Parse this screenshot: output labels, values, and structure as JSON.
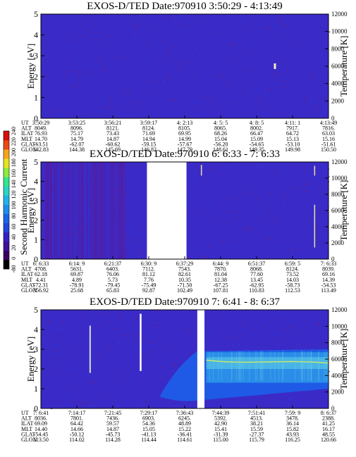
{
  "chart_data": [
    {
      "type": "heatmap",
      "title": "EXOS-D/TED   Date:970910  3:50:29 - 4:13:49",
      "ylabel": "Energy [eV]",
      "y2label": "Temperature [K]",
      "ylim": [
        0,
        5
      ],
      "yticks": [
        "0",
        "1",
        "2",
        "3",
        "4",
        "5"
      ],
      "y2lim": [
        0,
        12000
      ],
      "y2ticks": [
        "0",
        "2000",
        "4000",
        "6000",
        "8000",
        "10000",
        "12000"
      ],
      "gaps": [],
      "bright_spots": [
        {
          "ut_index": 6.5,
          "energy": 2.5
        }
      ],
      "emission_band": null,
      "table": {
        "rows": [
          {
            "label": "UT",
            "values": [
              "3:50:29",
              "3:53:25",
              "3:56:21",
              "3:59:17",
              "4: 2:13",
              "4: 5: 5",
              "4: 8: 5",
              "4:11: 1",
              "4:13:49"
            ]
          },
          {
            "label": "ALT",
            "values": [
              "8049.",
              "8096.",
              "8121.",
              "8124.",
              "8105.",
              "8065.",
              "8002.",
              "7917.",
              "7816."
            ]
          },
          {
            "label": "ILAT",
            "values": [
              "76.93",
              "75.17",
              "73.43",
              "71.69",
              "69.95",
              "68.26",
              "66.47",
              "64.72",
              "63.03"
            ]
          },
          {
            "label": "MLT",
            "values": [
              "14.70",
              "14.79",
              "14.87",
              "14.94",
              "14.99",
              "15.04",
              "15.09",
              "15.13",
              "15.16"
            ]
          },
          {
            "label": "GLAT",
            "values": [
              "-63.51",
              "-62.07",
              "-60.62",
              "-59.15",
              "-57.67",
              "-56.20",
              "-54.65",
              "-53.10",
              "-51.61"
            ]
          },
          {
            "label": "GLON",
            "values": [
              "142.83",
              "144.38",
              "145.69",
              "146.82",
              "147.79",
              "148.61",
              "149.35",
              "149.98",
              "150.50"
            ]
          }
        ]
      }
    },
    {
      "type": "heatmap",
      "title": "EXOS-D/TED   Date:970910  6: 6:33 - 7: 6:33",
      "ylabel": "Energy [eV]",
      "y2label": "Temperature [K]",
      "ylim": [
        0,
        5
      ],
      "yticks": [
        "0",
        "1",
        "2",
        "3",
        "4",
        "5"
      ],
      "y2lim": [
        0,
        12000
      ],
      "y2ticks": [
        "0",
        "2000",
        "4000",
        "6000",
        "8000",
        "10000",
        "12000"
      ],
      "gaps": [
        [
          2.95,
          4.05
        ]
      ],
      "bright_spots": [],
      "emission_band": null,
      "table": {
        "rows": [
          {
            "label": "UT",
            "values": [
              "6: 6:33",
              "6:14: 9",
              "6:21:37",
              "6:30: 9",
              "6:37:29",
              "6:44: 9",
              "6:51:37",
              "6:59: 5",
              "7: 6:33"
            ]
          },
          {
            "label": "ALT",
            "values": [
              "4708.",
              "5631.",
              "6403.",
              "7112.",
              "7543.",
              "7870.",
              "8068.",
              "8124.",
              "8039."
            ]
          },
          {
            "label": "ILAT",
            "values": [
              "62.18",
              "69.87",
              "76.06",
              "81.12",
              "82.61",
              "81.04",
              "77.60",
              "73.52",
              "69.16"
            ]
          },
          {
            "label": "MLT",
            "values": [
              "4.41",
              "4.89",
              "5.73",
              "7.76",
              "10.35",
              "12.38",
              "13.45",
              "14.03",
              "14.39"
            ]
          },
          {
            "label": "GLAT",
            "values": [
              "-72.31",
              "-78.91",
              "-79.45",
              "-75.49",
              "-71.50",
              "-67.25",
              "-62.95",
              "-58.73",
              "-54.53"
            ]
          },
          {
            "label": "GLON",
            "values": [
              "356.92",
              "25.68",
              "65.83",
              "92.87",
              "102.49",
              "107.81",
              "110.83",
              "112.53",
              "113.49"
            ]
          }
        ]
      }
    },
    {
      "type": "heatmap",
      "title": "EXOS-D/TED   Date:970910  7: 6:41 - 8: 6:37",
      "ylabel": "Energy [eV]",
      "y2label": "Temperature [K]",
      "ylim": [
        0,
        5
      ],
      "yticks": [
        "0",
        "1",
        "2",
        "3",
        "4",
        "5"
      ],
      "y2lim": [
        0,
        12000
      ],
      "y2ticks": [
        "0",
        "2000",
        "4000",
        "6000",
        "8000",
        "10000",
        "12000"
      ],
      "gaps": [
        [
          4.35,
          4.55
        ]
      ],
      "bright_spots": [],
      "emission_band": {
        "start_index": 3.3,
        "center_energy": 2.4
      },
      "table": {
        "rows": [
          {
            "label": "UT",
            "values": [
              "7: 6:41",
              "7:14:17",
              "7:21:45",
              "7:29:17",
              "7:36:43",
              "7:44:39",
              "7:51:41",
              "7:59: 9",
              "8: 6:37"
            ]
          },
          {
            "label": "ALT",
            "values": [
              "8036.",
              "7801.",
              "7436.",
              "6903.",
              "6245.",
              "5392.",
              "4513.",
              "3478.",
              "2388."
            ]
          },
          {
            "label": "ILAT",
            "values": [
              "69.09",
              "64.42",
              "59.57",
              "54.36",
              "48.89",
              "42.90",
              "38.21",
              "36.14",
              "41.25"
            ]
          },
          {
            "label": "MLT",
            "values": [
              "14.40",
              "14.66",
              "14.87",
              "15.05",
              "15.22",
              "15.41",
              "15.59",
              "15.82",
              "16.17"
            ]
          },
          {
            "label": "GLAT",
            "values": [
              "-54.45",
              "-50.12",
              "-45.73",
              "-41.13",
              "-36.41",
              "-31.39",
              "-27.37",
              "43.93",
              "48.55"
            ]
          },
          {
            "label": "GLON",
            "values": [
              "113.50",
              "114.02",
              "114.28",
              "114.44",
              "114.61",
              "115.00",
              "115.79",
              "116.25",
              "120.66"
            ]
          }
        ]
      }
    }
  ],
  "colorbar": {
    "label": "Second Harmonic Current",
    "range": [
      -80,
      240
    ],
    "ticks": [
      "-80",
      "0",
      "20",
      "40",
      "60",
      "80",
      "100",
      "120",
      "140",
      "160",
      "180",
      "200",
      "220",
      "240"
    ],
    "colors": [
      "#000000",
      "#3a0060",
      "#3c1296",
      "#3320c6",
      "#2244e0",
      "#1b64ec",
      "#1c8ef0",
      "#1fb4e8",
      "#26d6c4",
      "#30e88c",
      "#8cec3c",
      "#e6e41c",
      "#f8a418",
      "#ec4814",
      "#d80c0c"
    ]
  }
}
